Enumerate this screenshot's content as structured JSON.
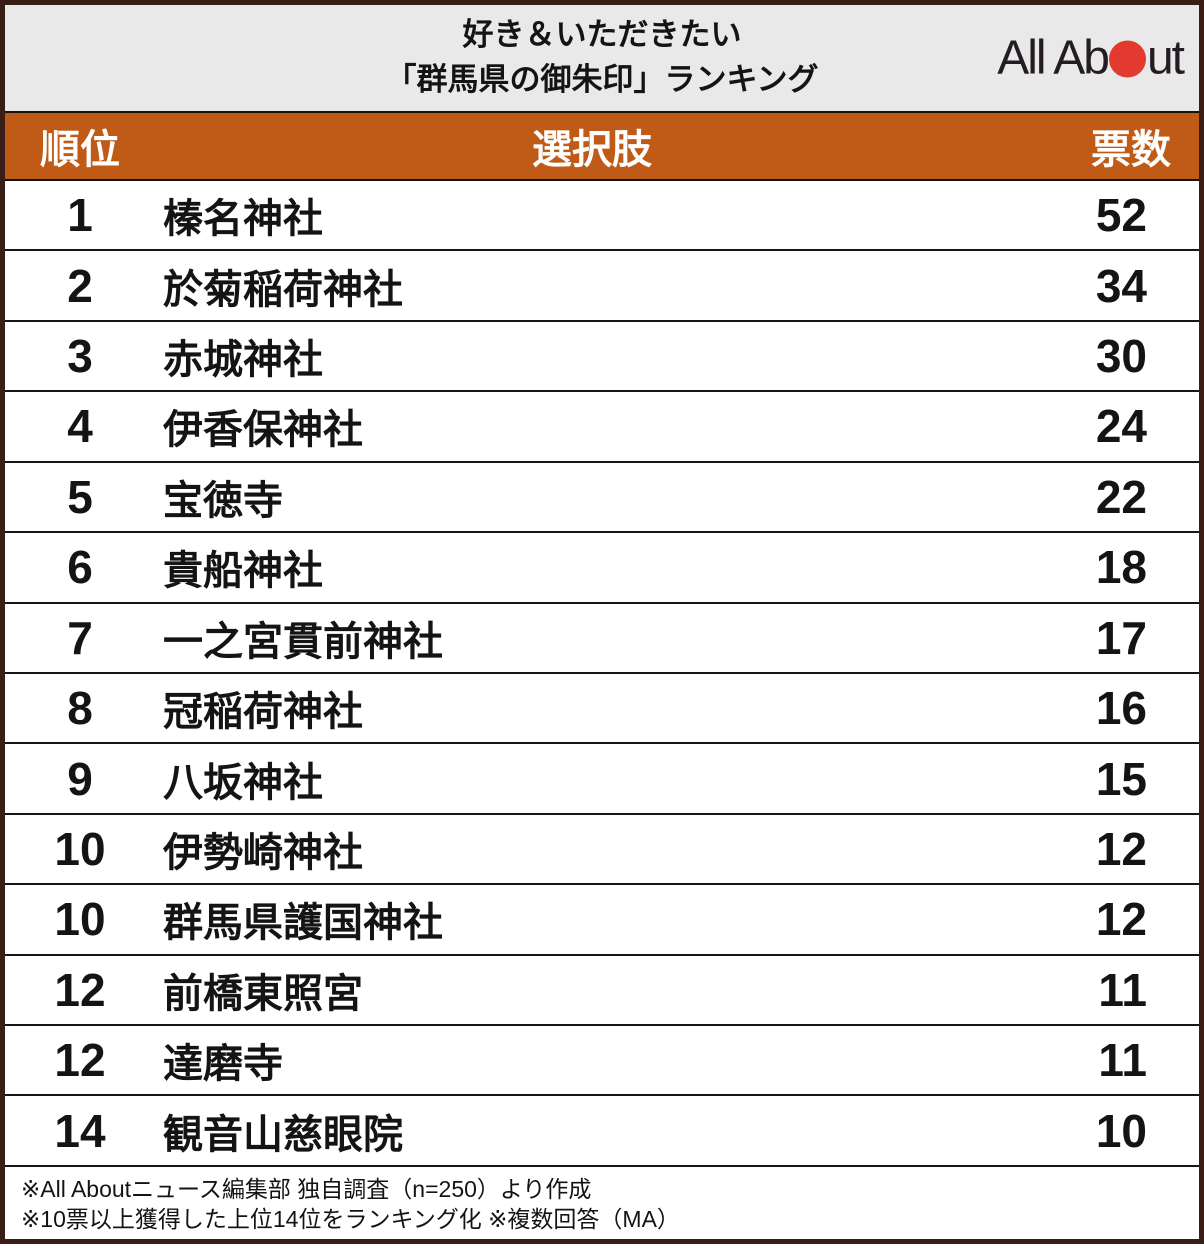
{
  "header": {
    "title_line1": "好き＆いただきたい",
    "title_line2": "「群馬県の御朱印」ランキング",
    "logo": {
      "text_left": "All Ab",
      "text_right": "ut",
      "dot_icon": "red-circle",
      "dot_color": "#e23a2e"
    }
  },
  "table": {
    "columns": {
      "rank": "順位",
      "choice": "選択肢",
      "votes": "票数"
    },
    "rows": [
      {
        "rank": "1",
        "name": "榛名神社",
        "votes": "52"
      },
      {
        "rank": "2",
        "name": "於菊稲荷神社",
        "votes": "34"
      },
      {
        "rank": "3",
        "name": "赤城神社",
        "votes": "30"
      },
      {
        "rank": "4",
        "name": "伊香保神社",
        "votes": "24"
      },
      {
        "rank": "5",
        "name": "宝徳寺",
        "votes": "22"
      },
      {
        "rank": "6",
        "name": "貴船神社",
        "votes": "18"
      },
      {
        "rank": "7",
        "name": "一之宮貫前神社",
        "votes": "17"
      },
      {
        "rank": "8",
        "name": "冠稲荷神社",
        "votes": "16"
      },
      {
        "rank": "9",
        "name": "八坂神社",
        "votes": "15"
      },
      {
        "rank": "10",
        "name": "伊勢崎神社",
        "votes": "12"
      },
      {
        "rank": "10",
        "name": "群馬県護国神社",
        "votes": "12"
      },
      {
        "rank": "12",
        "name": "前橋東照宮",
        "votes": "11"
      },
      {
        "rank": "12",
        "name": "達磨寺",
        "votes": "11"
      },
      {
        "rank": "14",
        "name": "観音山慈眼院",
        "votes": "10"
      }
    ]
  },
  "footnotes": [
    "※All Aboutニュース編集部 独自調査（n=250）より作成",
    "※10票以上獲得した上位14位をランキング化 ※複数回答（MA）"
  ],
  "colors": {
    "header_bg": "#c05a17",
    "title_band_bg": "#e9e9e9",
    "outer_border": "#3b1d18",
    "logo_red": "#e23a2e",
    "header_text": "#ffffff",
    "row_divider": "#161616"
  },
  "chart_data": {
    "type": "table",
    "title": "好き＆いただきたい「群馬県の御朱印」ランキング",
    "columns": [
      "順位",
      "選択肢",
      "票数"
    ],
    "rows": [
      [
        1,
        "榛名神社",
        52
      ],
      [
        2,
        "於菊稲荷神社",
        34
      ],
      [
        3,
        "赤城神社",
        30
      ],
      [
        4,
        "伊香保神社",
        24
      ],
      [
        5,
        "宝徳寺",
        22
      ],
      [
        6,
        "貴船神社",
        18
      ],
      [
        7,
        "一之宮貫前神社",
        17
      ],
      [
        8,
        "冠稲荷神社",
        16
      ],
      [
        9,
        "八坂神社",
        15
      ],
      [
        10,
        "伊勢崎神社",
        12
      ],
      [
        10,
        "群馬県護国神社",
        12
      ],
      [
        12,
        "前橋東照宮",
        11
      ],
      [
        12,
        "達磨寺",
        11
      ],
      [
        14,
        "観音山慈眼院",
        10
      ]
    ],
    "source_notes": [
      "※All Aboutニュース編集部 独自調査（n=250）より作成",
      "※10票以上獲得した上位14位をランキング化 ※複数回答（MA）"
    ]
  }
}
